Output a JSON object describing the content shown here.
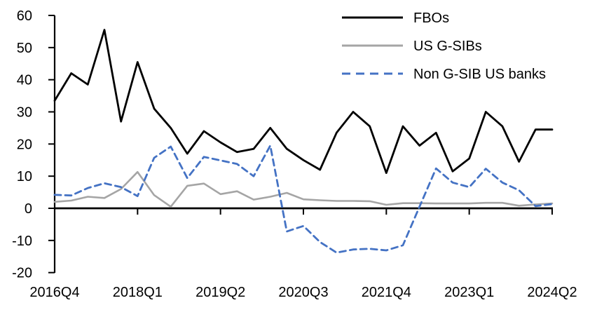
{
  "chart_data": {
    "type": "line",
    "title": "",
    "categories": [
      "2016Q4",
      "2017Q1",
      "2017Q2",
      "2017Q3",
      "2017Q4",
      "2018Q1",
      "2018Q2",
      "2018Q3",
      "2018Q4",
      "2019Q1",
      "2019Q2",
      "2019Q3",
      "2019Q4",
      "2020Q1",
      "2020Q2",
      "2020Q3",
      "2020Q4",
      "2021Q1",
      "2021Q2",
      "2021Q3",
      "2021Q4",
      "2022Q1",
      "2022Q2",
      "2022Q3",
      "2022Q4",
      "2023Q1",
      "2023Q2",
      "2023Q3",
      "2023Q4",
      "2024Q1",
      "2024Q2"
    ],
    "x_tick_labels": [
      "2016Q4",
      "2018Q1",
      "2019Q2",
      "2020Q3",
      "2021Q4",
      "2023Q1",
      "2024Q2"
    ],
    "x_tick_every": 5,
    "y_ticks": [
      60,
      50,
      40,
      30,
      20,
      10,
      0,
      -10,
      -20
    ],
    "ylim": [
      -20,
      60
    ],
    "grid": false,
    "legend_position": "top-right",
    "series": [
      {
        "name": "FBOs",
        "color": "#000000",
        "line_style": "solid",
        "values": [
          33.5,
          42,
          38.5,
          55.5,
          27,
          45.5,
          31,
          25,
          17,
          24,
          20.5,
          17.5,
          18.5,
          25,
          18.5,
          15,
          12,
          23.5,
          30,
          25.5,
          11,
          25.5,
          19.5,
          23.5,
          11.5,
          15.5,
          30,
          25.5,
          14.5,
          24.5,
          24.5
        ]
      },
      {
        "name": "US G-SIBs",
        "color": "#A5A5A5",
        "line_style": "solid",
        "values": [
          2,
          2.4,
          3.6,
          3.2,
          6,
          11.3,
          4.1,
          0.5,
          7,
          7.7,
          4.4,
          5.3,
          2.7,
          3.6,
          4.8,
          2.8,
          2.5,
          2.3,
          2.3,
          2.2,
          1.1,
          1.6,
          1.6,
          1.5,
          1.5,
          1.5,
          1.7,
          1.7,
          0.8,
          1.2,
          1.5
        ]
      },
      {
        "name": "Non G-SIB US banks",
        "color": "#4472C4",
        "line_style": "dashed",
        "values": [
          4.2,
          4,
          6.3,
          7.8,
          6.6,
          3.8,
          15.7,
          19.2,
          9.4,
          16,
          14.9,
          13.8,
          10,
          19.5,
          -7.2,
          -5.5,
          -10.5,
          -13.8,
          -12.8,
          -12.6,
          -13.1,
          -11.5,
          0.5,
          12.4,
          8,
          6.6,
          12.3,
          8,
          5.6,
          0.7,
          1.3
        ]
      }
    ]
  }
}
